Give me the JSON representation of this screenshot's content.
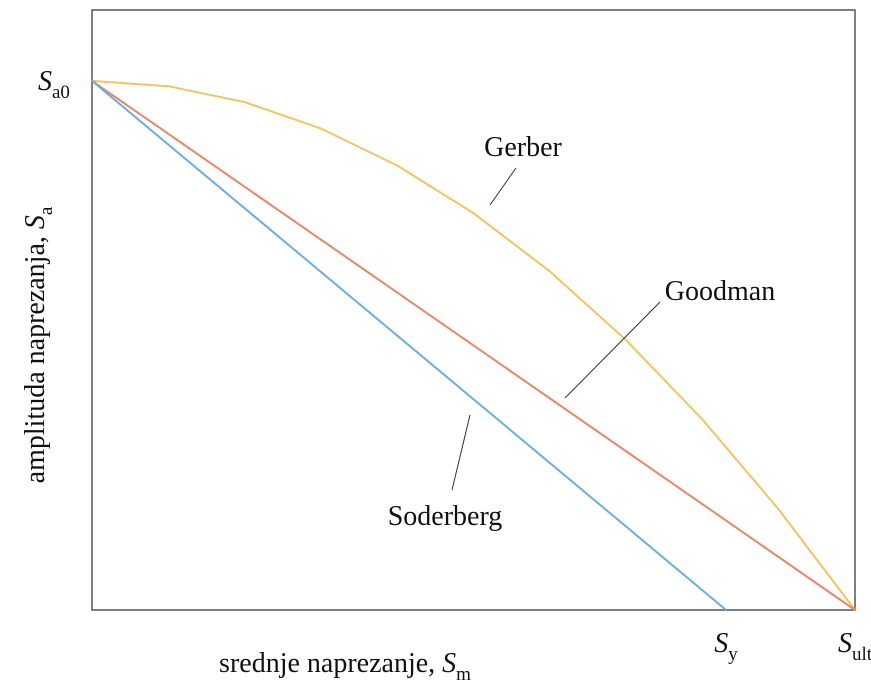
{
  "chart_data": {
    "type": "line",
    "xlabel": {
      "text": "srednje naprezanje,",
      "symbol": "S",
      "sub": "m"
    },
    "ylabel": {
      "text": "amplituda naprezanja,",
      "symbol": "S",
      "sub": "a"
    },
    "xlim": [
      0,
      1
    ],
    "ylim": [
      0,
      1.134
    ],
    "xticks": [
      {
        "value": 0.831,
        "label": "S",
        "sub": "y"
      },
      {
        "value": 1,
        "label": "S",
        "sub": "ult"
      }
    ],
    "yticks": [
      {
        "value": 1,
        "label": "S",
        "sub": "a0"
      }
    ],
    "series": [
      {
        "name": "Gerber",
        "color": "#f2c45e",
        "x": [
          0,
          0.1,
          0.2,
          0.3,
          0.4,
          0.5,
          0.6,
          0.7,
          0.8,
          0.9,
          1
        ],
        "values": [
          1,
          0.99,
          0.96,
          0.91,
          0.84,
          0.75,
          0.64,
          0.51,
          0.36,
          0.19,
          0
        ]
      },
      {
        "name": "Goodman",
        "color": "#e8866a",
        "x": [
          0,
          1
        ],
        "values": [
          1,
          0
        ]
      },
      {
        "name": "Soderberg",
        "color": "#6aaee0",
        "x": [
          0,
          0.831
        ],
        "values": [
          1,
          0
        ]
      }
    ]
  }
}
